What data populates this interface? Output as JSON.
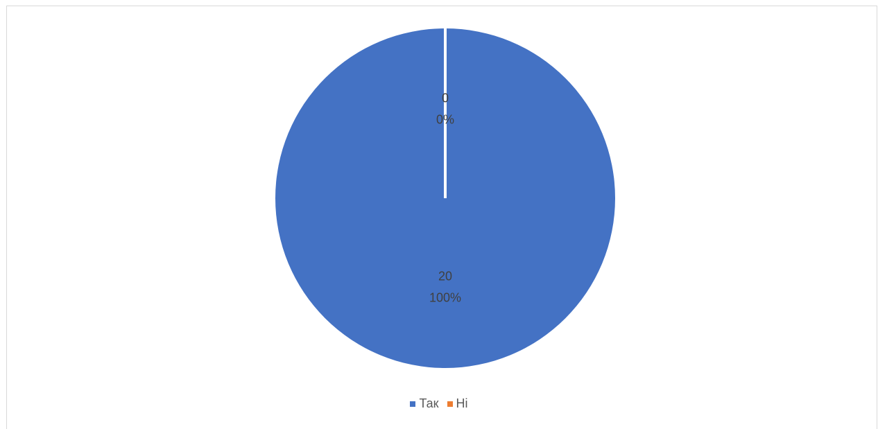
{
  "chart_data": {
    "type": "pie",
    "title": "",
    "categories": [
      "Так",
      "Ні"
    ],
    "values": [
      20,
      0
    ],
    "percent_labels": [
      "100%",
      "0%"
    ],
    "colors": [
      "#4472C4",
      "#ED7D31"
    ],
    "legend_position": "bottom",
    "data_labels": true
  }
}
